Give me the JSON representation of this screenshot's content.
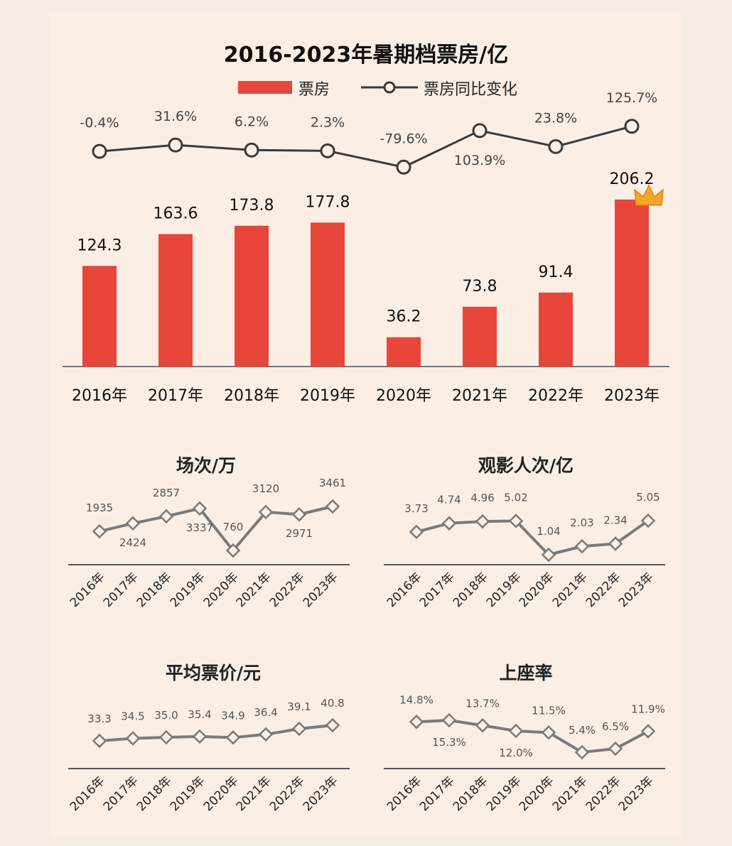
{
  "colors": {
    "bar": "#e8463a",
    "line_main": "#3a3a3a",
    "line_small": "#7a7a7a",
    "background": "#fbeee5"
  },
  "chart_data": [
    {
      "type": "bar",
      "title": "2016-2023年暑期档票房/亿",
      "categories": [
        "2016年",
        "2017年",
        "2018年",
        "2019年",
        "2020年",
        "2021年",
        "2022年",
        "2023年"
      ],
      "series": [
        {
          "name": "票房",
          "type": "bar",
          "values": [
            124.3,
            163.6,
            173.8,
            177.8,
            36.2,
            73.8,
            91.4,
            206.2
          ]
        },
        {
          "name": "票房同比变化",
          "type": "line",
          "values": [
            -0.4,
            31.6,
            6.2,
            2.3,
            -79.6,
            103.9,
            23.8,
            125.7
          ],
          "labels": [
            "-0.4%",
            "31.6%",
            "6.2%",
            "2.3%",
            "-79.6%",
            "103.9%",
            "23.8%",
            "125.7%"
          ]
        }
      ],
      "legend": "top-center",
      "crown_icon": "crown-icon"
    },
    {
      "type": "line",
      "title": "场次/万",
      "categories": [
        "2016年",
        "2017年",
        "2018年",
        "2019年",
        "2020年",
        "2021年",
        "2022年",
        "2023年"
      ],
      "values": [
        1935,
        2424,
        2857,
        3337,
        760,
        3120,
        2971,
        3461
      ],
      "labels": [
        "1935",
        "2424",
        "2857",
        "3337",
        "760",
        "3120",
        "2971",
        "3461"
      ]
    },
    {
      "type": "line",
      "title": "观影人次/亿",
      "categories": [
        "2016年",
        "2017年",
        "2018年",
        "2019年",
        "2020年",
        "2021年",
        "2022年",
        "2023年"
      ],
      "values": [
        3.73,
        4.74,
        4.96,
        5.02,
        1.04,
        2.03,
        2.34,
        5.05
      ],
      "labels": [
        "3.73",
        "4.74",
        "4.96",
        "5.02",
        "1.04",
        "2.03",
        "2.34",
        "5.05"
      ]
    },
    {
      "type": "line",
      "title": "平均票价/元",
      "categories": [
        "2016年",
        "2017年",
        "2018年",
        "2019年",
        "2020年",
        "2021年",
        "2022年",
        "2023年"
      ],
      "values": [
        33.3,
        34.5,
        35.0,
        35.4,
        34.9,
        36.4,
        39.1,
        40.8
      ],
      "labels": [
        "33.3",
        "34.5",
        "35.0",
        "35.4",
        "34.9",
        "36.4",
        "39.1",
        "40.8"
      ]
    },
    {
      "type": "line",
      "title": "上座率",
      "categories": [
        "2016年",
        "2017年",
        "2018年",
        "2019年",
        "2020年",
        "2021年",
        "2022年",
        "2023年"
      ],
      "values": [
        14.8,
        15.3,
        13.7,
        12.0,
        11.5,
        5.4,
        6.5,
        11.9
      ],
      "labels": [
        "14.8%",
        "15.3%",
        "13.7%",
        "12.0%",
        "11.5%",
        "5.4%",
        "6.5%",
        "11.9%"
      ]
    }
  ]
}
